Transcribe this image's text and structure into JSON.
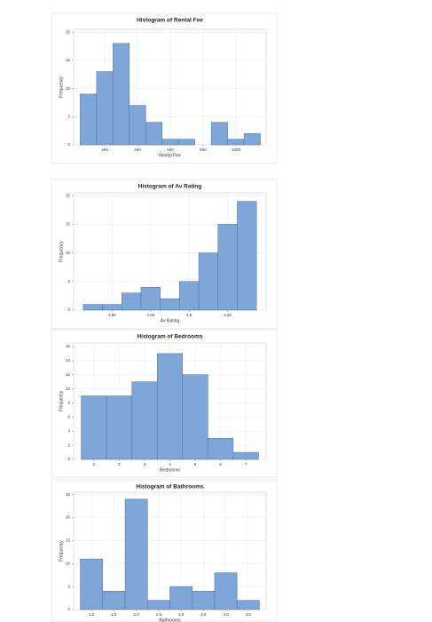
{
  "chart_data": [
    {
      "type": "histogram",
      "title": "Histogram of Rental Fee",
      "xlabel": "Rental Fee",
      "ylabel": "Frequency",
      "bins": [
        50,
        150,
        250,
        350,
        450,
        550,
        650,
        750,
        850,
        950,
        1050,
        1150
      ],
      "counts": [
        9,
        13,
        18,
        7,
        4,
        1,
        1,
        0,
        4,
        1,
        2
      ],
      "color": "#7ea6d9",
      "xlim": [
        10,
        1185
      ],
      "xticks": [
        200,
        400,
        600,
        800,
        1000
      ],
      "ylim": [
        0,
        20.5
      ],
      "yticks": [
        0,
        5,
        10,
        15,
        20
      ],
      "grid": true
    },
    {
      "type": "histogram",
      "title": "Histogram of Av Rating",
      "xlabel": "Av Rating",
      "ylabel": "Frequency",
      "bins": [
        4.47,
        4.53,
        4.59,
        4.65,
        4.71,
        4.77,
        4.83,
        4.89,
        4.95,
        5.01
      ],
      "counts": [
        1,
        1,
        3,
        4,
        2,
        5,
        10,
        15,
        19
      ],
      "color": "#7ea6d9",
      "xlim": [
        4.44,
        5.04
      ],
      "xticks": [
        4.56,
        4.68,
        4.8,
        {
          "value": 4.8,
          "label": "4.80"
        },
        4.92
      ],
      "ylim": [
        0,
        20.5
      ],
      "yticks": [
        0,
        5,
        10,
        15,
        20
      ],
      "grid": true
    },
    {
      "type": "histogram",
      "title": "Histogram of Bedrooms",
      "xlabel": "Bedrooms",
      "ylabel": "Frequency",
      "bins": [
        0.5,
        1.5,
        2.5,
        3.5,
        4.5,
        5.5,
        6.5,
        7.5
      ],
      "counts": [
        9,
        9,
        11,
        15,
        12,
        3,
        1
      ],
      "color": "#7ea6d9",
      "xlim": [
        0.2,
        7.8
      ],
      "xticks": [
        1,
        2,
        3,
        4,
        5,
        6,
        7
      ],
      "ylim": [
        0,
        16.5
      ],
      "yticks": [
        0,
        2,
        4,
        6,
        8,
        10,
        12,
        14,
        16
      ],
      "grid": true
    },
    {
      "type": "histogram",
      "title": "Histogram of Bathrooms",
      "xlabel": "Bathrooms",
      "ylabel": "Frequency",
      "bins": [
        0.75,
        1.25,
        1.75,
        2.25,
        2.75,
        3.25,
        3.75,
        4.25,
        4.75
      ],
      "counts": [
        11,
        4,
        24,
        2,
        5,
        4,
        8,
        2
      ],
      "color": "#7ea6d9",
      "xlim": [
        0.6,
        4.9
      ],
      "xticks": [
        {
          "value": 1,
          "label": "1.0"
        },
        1.5,
        {
          "value": 2,
          "label": "2.0"
        },
        2.5,
        {
          "value": 3,
          "label": "3.0"
        },
        3.5,
        {
          "value": 4,
          "label": "4.0"
        },
        4.5
      ],
      "ylim": [
        0,
        25.5
      ],
      "yticks": [
        0,
        5,
        10,
        15,
        20,
        25
      ],
      "grid": true
    }
  ]
}
